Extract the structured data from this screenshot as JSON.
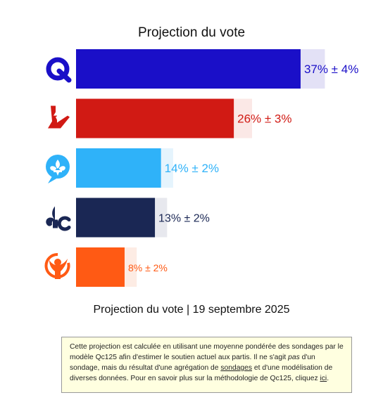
{
  "chart_data": {
    "type": "bar",
    "orientation": "horizontal",
    "title": "Projection du vote",
    "subtitle": "Projection du vote | 19 septembre 2025",
    "xlim": [
      0,
      48
    ],
    "grid": false,
    "legend": "none",
    "bars": [
      {
        "party_icon": "parti-quebecois-logo",
        "value": 37,
        "margin": 4,
        "label": "37% ± 4%",
        "color": "#1a0fc8",
        "band_color": "#e3e1f6",
        "label_color": "#1a0fc8"
      },
      {
        "party_icon": "parti-liberal-logo",
        "value": 26,
        "margin": 3,
        "label": "26% ± 3%",
        "color": "#d11a14",
        "band_color": "#fbe8e6",
        "label_color": "#d11a14"
      },
      {
        "party_icon": "caq-logo",
        "value": 14,
        "margin": 2,
        "label": "14% ± 2%",
        "color": "#2fb2f9",
        "band_color": "#e5f4fd",
        "label_color": "#2fb2f9"
      },
      {
        "party_icon": "parti-conservateur-logo",
        "value": 13,
        "margin": 2,
        "label": "13% ± 2%",
        "color": "#1a2754",
        "band_color": "#e7e8ee",
        "label_color": "#1a2754"
      },
      {
        "party_icon": "quebec-solidaire-logo",
        "value": 8,
        "margin": 2,
        "label": "8% ± 2%",
        "color": "#ff5a14",
        "band_color": "#fdece4",
        "label_color": "#ff5a14"
      }
    ]
  },
  "note": {
    "part1": "Cette projection est calculée en utilisant une moyenne pondérée des sondages par le modèle Qc125 afin d'estimer le soutien actuel aux partis. Il ne s'agit ",
    "emphasis": "pas",
    "part2": " d'un sondage, mais du résultat d'une agrégation de ",
    "link_sondages": "sondages",
    "part3": " et d'une modélisation de diverses données. Pour en savoir plus sur la méthodologie de Qc125, cliquez ",
    "link_ici": "ici",
    "part4": "."
  }
}
